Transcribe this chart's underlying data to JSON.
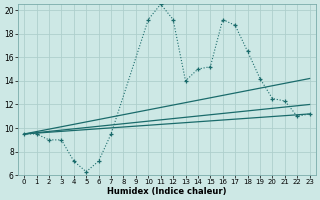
{
  "xlabel": "Humidex (Indice chaleur)",
  "ylabel": "",
  "bg_color": "#cde8e5",
  "grid_color": "#aecfcc",
  "line_color": "#1a6b6b",
  "xlim": [
    -0.5,
    23.5
  ],
  "ylim": [
    6,
    20.5
  ],
  "xticks": [
    0,
    1,
    2,
    3,
    4,
    5,
    6,
    7,
    8,
    9,
    10,
    11,
    12,
    13,
    14,
    15,
    16,
    17,
    18,
    19,
    20,
    21,
    22,
    23
  ],
  "yticks": [
    6,
    8,
    10,
    12,
    14,
    16,
    18,
    20
  ],
  "main_series": {
    "x": [
      0,
      1,
      2,
      3,
      4,
      5,
      6,
      7,
      10,
      11,
      12,
      13,
      14,
      15,
      16,
      17,
      18,
      19,
      20,
      21,
      22,
      23
    ],
    "y": [
      9.5,
      9.5,
      9.0,
      9.0,
      7.2,
      6.3,
      7.2,
      9.5,
      19.2,
      20.5,
      19.2,
      14.0,
      15.0,
      15.2,
      19.2,
      18.7,
      16.5,
      14.2,
      12.5,
      12.3,
      11.0,
      11.2
    ]
  },
  "trend_lines": [
    {
      "x": [
        0,
        23
      ],
      "y": [
        9.5,
        14.2
      ]
    },
    {
      "x": [
        0,
        23
      ],
      "y": [
        9.5,
        12.0
      ]
    },
    {
      "x": [
        0,
        23
      ],
      "y": [
        9.5,
        11.2
      ]
    }
  ]
}
